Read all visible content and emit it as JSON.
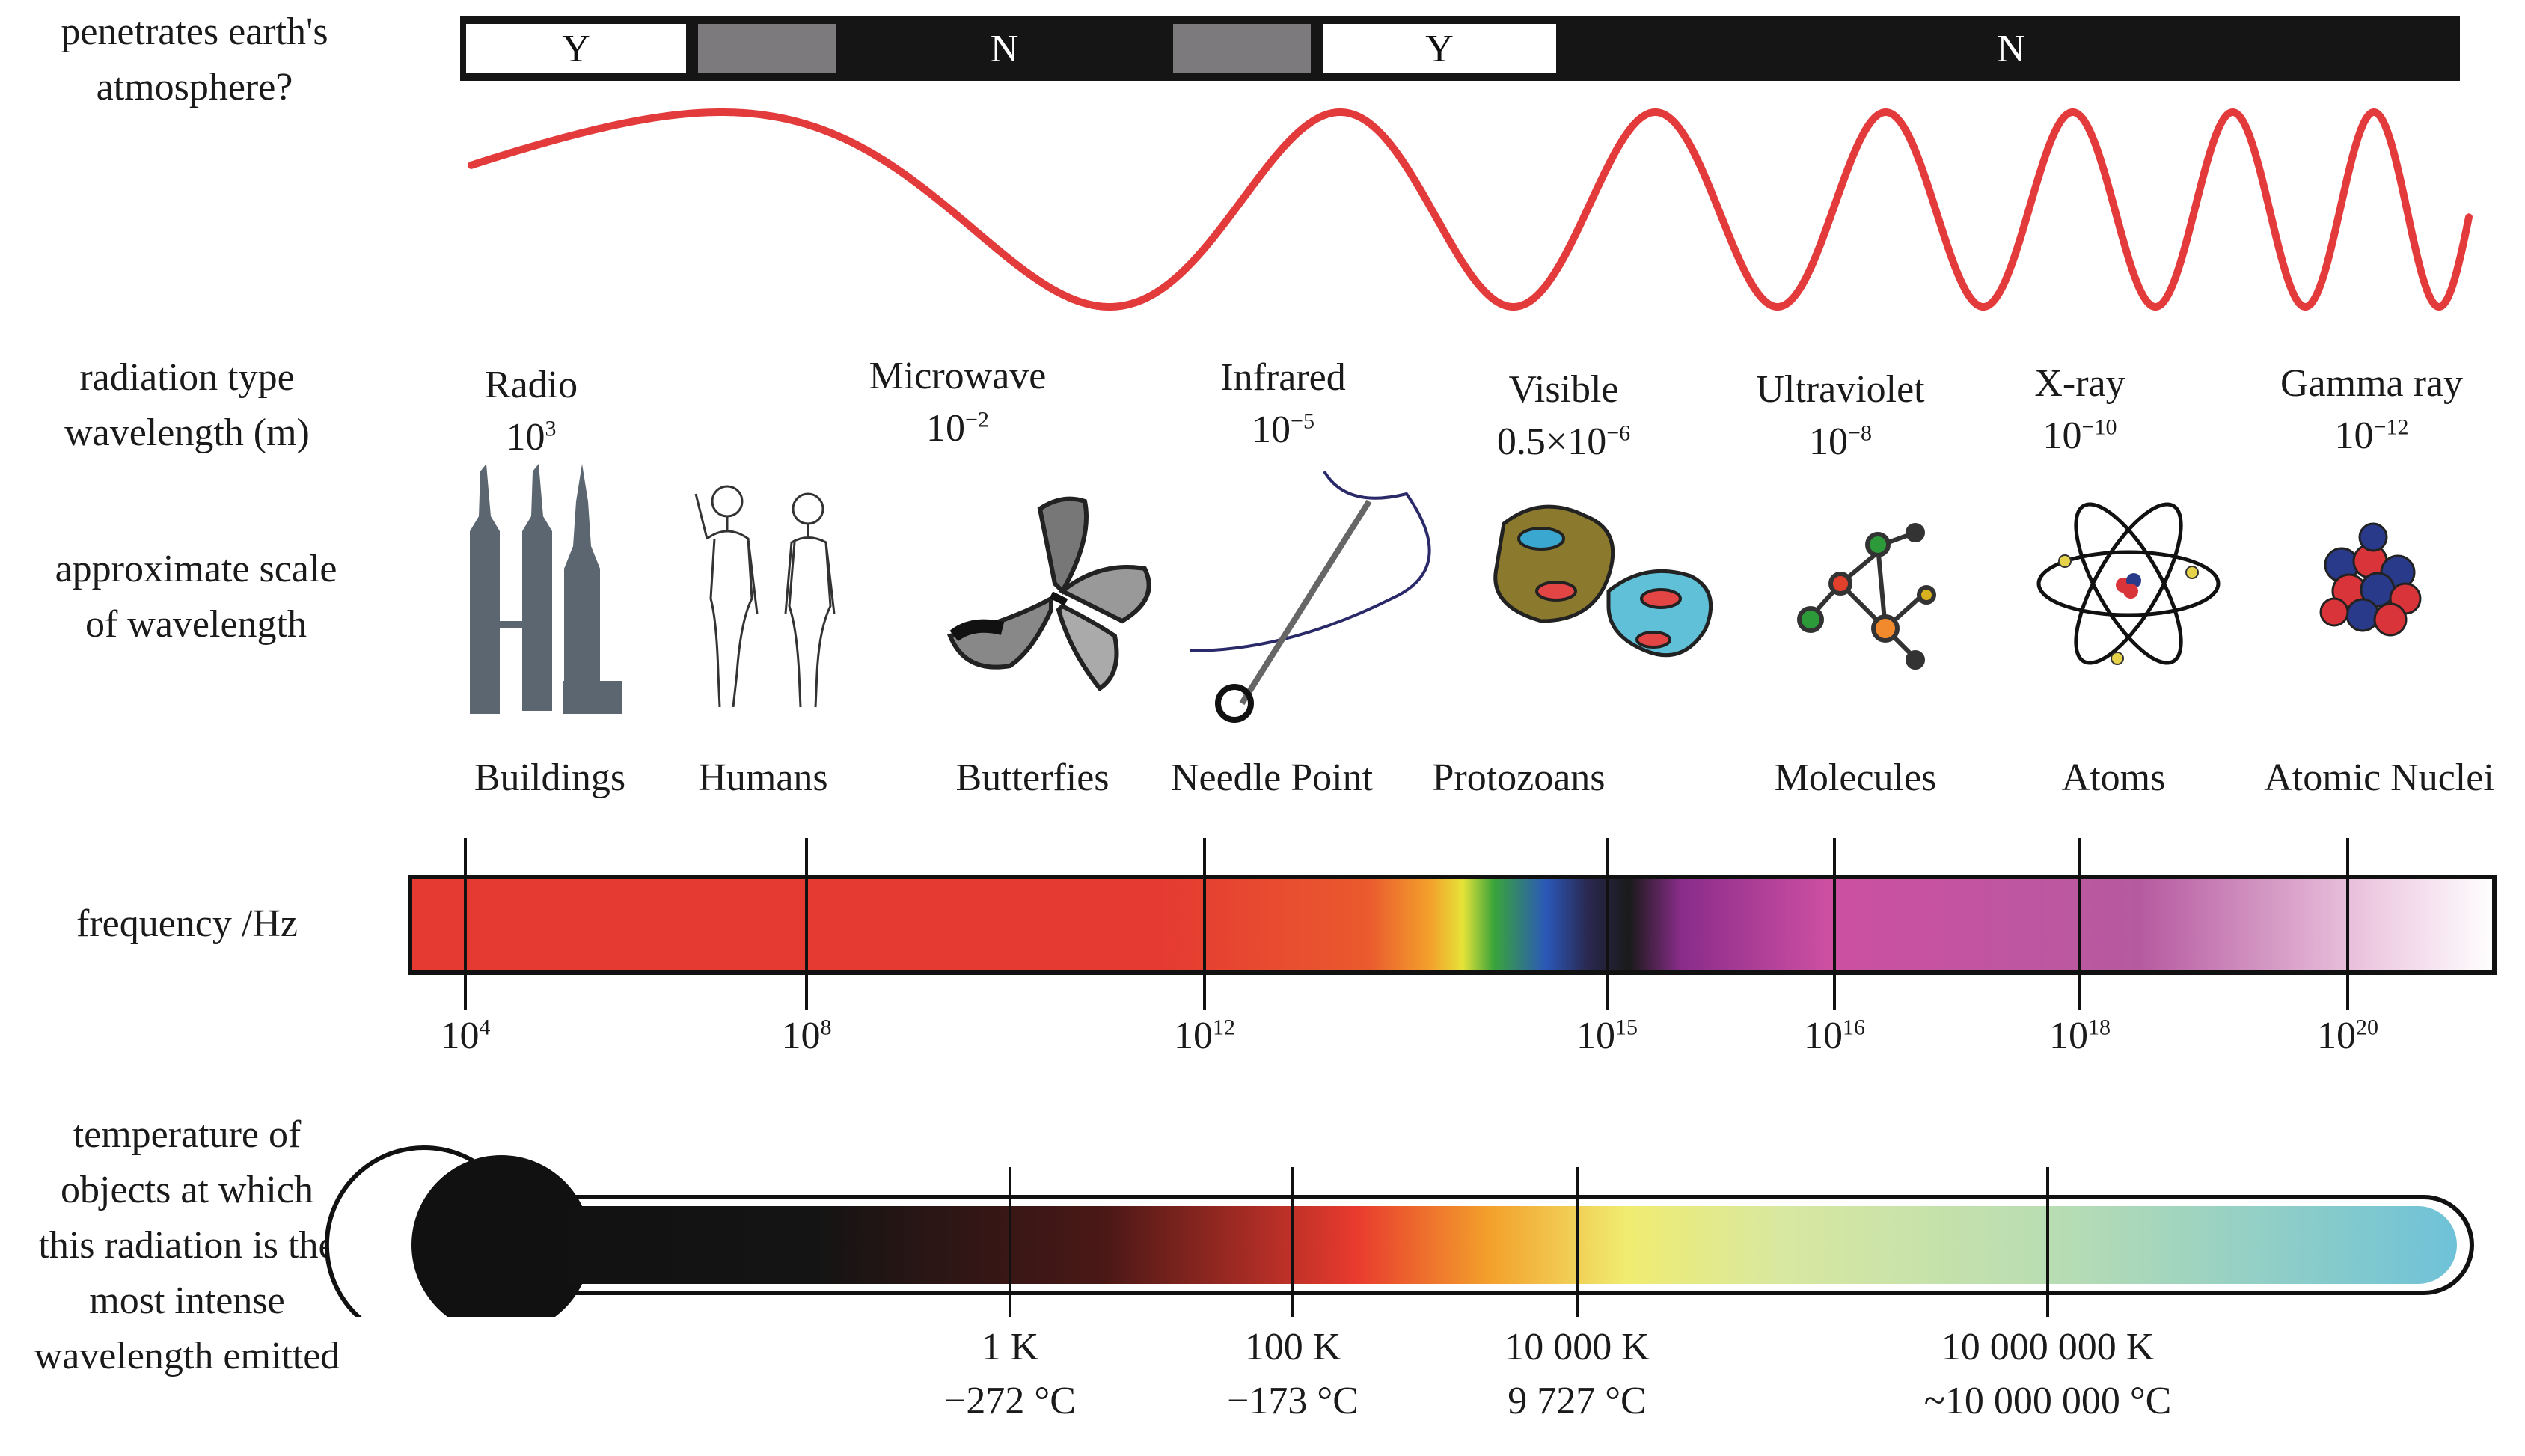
{
  "left_labels": {
    "atmosphere": [
      "penetrates earth's",
      "atmosphere?"
    ],
    "radiation": [
      "radiation type",
      "wavelength (m)"
    ],
    "scale": [
      "approximate scale",
      "of wavelength"
    ],
    "frequency": "frequency /Hz",
    "temperature": [
      "temperature of",
      "objects at which",
      "this radiation is the",
      "most intense",
      "wavelength emitted"
    ]
  },
  "atmosphere_bar": [
    {
      "label": "Y",
      "kind": "yes"
    },
    {
      "label": "",
      "kind": "partial"
    },
    {
      "label": "N",
      "kind": "no"
    },
    {
      "label": "",
      "kind": "partial"
    },
    {
      "label": "Y",
      "kind": "yes"
    },
    {
      "label": "N",
      "kind": "no"
    }
  ],
  "wave_color": "#e33b3b",
  "radiation_types": [
    {
      "name": "Radio",
      "wl_base": "10",
      "wl_exp": "3"
    },
    {
      "name": "Microwave",
      "wl_base": "10",
      "wl_exp": "−2"
    },
    {
      "name": "Infrared",
      "wl_base": "10",
      "wl_exp": "−5"
    },
    {
      "name": "Visible",
      "wl_base": "0.5×10",
      "wl_exp": "−6"
    },
    {
      "name": "Ultraviolet",
      "wl_base": "10",
      "wl_exp": "−8"
    },
    {
      "name": "X-ray",
      "wl_base": "10",
      "wl_exp": "−10"
    },
    {
      "name": "Gamma ray",
      "wl_base": "10",
      "wl_exp": "−12"
    }
  ],
  "scale_objects": [
    {
      "name": "Buildings",
      "icon": "buildings-icon"
    },
    {
      "name": "Humans",
      "icon": "humans-icon"
    },
    {
      "name": "Butterfies",
      "icon": "butterfly-icon"
    },
    {
      "name": "Needle Point",
      "icon": "needle-icon"
    },
    {
      "name": "Protozoans",
      "icon": "protozoans-icon"
    },
    {
      "name": "Molecules",
      "icon": "molecule-icon"
    },
    {
      "name": "Atoms",
      "icon": "atom-icon"
    },
    {
      "name": "Atomic Nuclei",
      "icon": "nucleus-icon"
    }
  ],
  "frequency_ticks": [
    {
      "base": "10",
      "exp": "4"
    },
    {
      "base": "10",
      "exp": "8"
    },
    {
      "base": "10",
      "exp": "12"
    },
    {
      "base": "10",
      "exp": "15"
    },
    {
      "base": "10",
      "exp": "16"
    },
    {
      "base": "10",
      "exp": "18"
    },
    {
      "base": "10",
      "exp": "20"
    }
  ],
  "temperature_ticks": [
    {
      "kelvin": "1 K",
      "celsius": "−272 °C"
    },
    {
      "kelvin": "100 K",
      "celsius": "−173 °C"
    },
    {
      "kelvin": "10 000 K",
      "celsius": "9 727 °C"
    },
    {
      "kelvin": "10 000 000 K",
      "celsius": "~10 000 000 °C"
    }
  ]
}
